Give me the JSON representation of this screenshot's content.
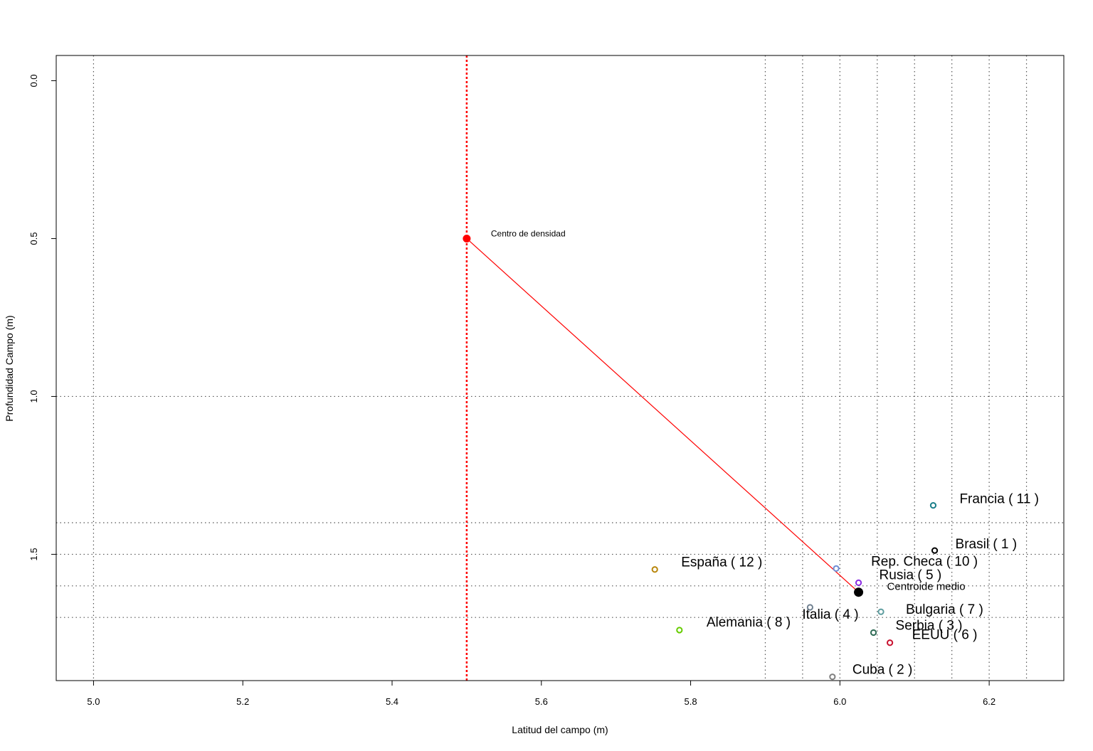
{
  "chart_data": {
    "type": "scatter",
    "xlabel": "Latitud del campo (m)",
    "ylabel": "Profundidad Campo (m)",
    "xlim": [
      4.95,
      6.3
    ],
    "ylim": [
      1.9,
      -0.08
    ],
    "y_axis_reversed": true,
    "grid": "dotted",
    "x_ticks": [
      "5.0",
      "5.2",
      "5.4",
      "5.6",
      "5.8",
      "6.0",
      "6.2"
    ],
    "y_ticks": [
      "0.0",
      "0.5",
      "1.0",
      "1.5"
    ],
    "vertical_gridlines": [
      5.0,
      5.9,
      5.95,
      6.0,
      6.05,
      6.1,
      6.15,
      6.2,
      6.25
    ],
    "horizontal_gridlines": [
      1.0,
      1.4,
      1.5,
      1.6,
      1.7
    ],
    "reference_line_x": 5.5,
    "reference_color": "#ff0000",
    "density_center": {
      "label": "Centro de densidad",
      "x": 5.5,
      "y": 0.5,
      "color": "#ff0000"
    },
    "mean_centroid": {
      "label": "Centroide medio",
      "x": 6.025,
      "y": 1.62,
      "color": "#000000"
    },
    "connector_color": "#ff0000",
    "points": [
      {
        "label": "Francia ( 11 )",
        "x": 6.125,
        "y": 1.345,
        "color": "#1b7f8a"
      },
      {
        "label": "Brasil ( 1 )",
        "x": 6.127,
        "y": 1.488,
        "color": "#000000"
      },
      {
        "label": "Rep. Checa ( 10 )",
        "x": 5.995,
        "y": 1.545,
        "color": "#6f8fd6"
      },
      {
        "label": "Rusia ( 5 )",
        "x": 6.025,
        "y": 1.59,
        "color": "#8a2be2"
      },
      {
        "label": "España ( 12 )",
        "x": 5.752,
        "y": 1.548,
        "color": "#b8860b"
      },
      {
        "label": "Italia ( 4 )",
        "x": 5.96,
        "y": 1.668,
        "color": "#708090"
      },
      {
        "label": "Bulgaria ( 7 )",
        "x": 6.055,
        "y": 1.682,
        "color": "#5f9ea0"
      },
      {
        "label": "Serbia ( 3 )",
        "x": 6.045,
        "y": 1.748,
        "color": "#2e6b55"
      },
      {
        "label": "EEUU ( 6 )",
        "x": 6.067,
        "y": 1.78,
        "color": "#c8102e"
      },
      {
        "label": "Alemania ( 8 )",
        "x": 5.785,
        "y": 1.74,
        "color": "#66cc00"
      },
      {
        "label": "Cuba ( 2 )",
        "x": 5.99,
        "y": 1.888,
        "color": "#808080"
      }
    ]
  }
}
